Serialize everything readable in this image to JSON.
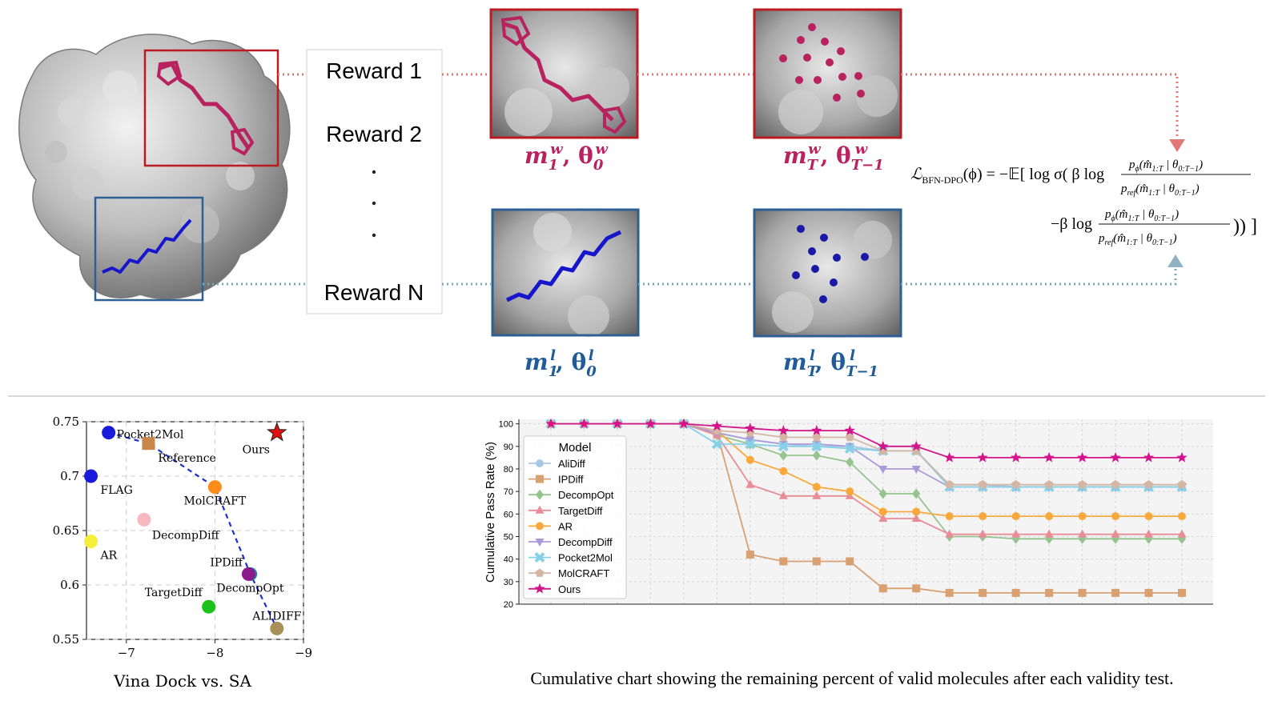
{
  "pipeline": {
    "rewards": [
      "Reward 1",
      "Reward 2",
      "Reward N"
    ],
    "win_labels": {
      "first": {
        "m": "m",
        "sub": "1",
        "sup": "w",
        "theta_sub": "0",
        "theta_sup": "w"
      },
      "last": {
        "m": "m",
        "sub": "T",
        "sup": "w",
        "theta_sub": "T−1",
        "theta_sup": "w"
      }
    },
    "lose_labels": {
      "first": {
        "m": "m",
        "sub": "1",
        "sup": "l",
        "theta_sub": "0",
        "theta_sup": "l"
      },
      "last": {
        "m": "m",
        "sub": "T",
        "sup": "l",
        "theta_sub": "T−1",
        "theta_sup": "l"
      }
    },
    "colors": {
      "win": "#b8235f",
      "win_box": "#b81c22",
      "lose": "#1f5c99",
      "lose_box": "#2e5f93",
      "win_path": "#e07878",
      "lose_path": "#7aaab5"
    }
  },
  "equation": {
    "lhs": "ℒ",
    "lhs_sub": "BFN-DPO",
    "line1": "(ϕ) = −𝔼[ log σ( β log",
    "line2": "−β log"
  },
  "scatter": {
    "chart_data": {
      "type": "scatter",
      "xlabel": "Vina Dock vs. SA",
      "ylabel": "",
      "xlim": [
        -6.55,
        -9.0
      ],
      "ylim": [
        0.55,
        0.75
      ],
      "xticks": [
        "−7",
        "−8",
        "−9"
      ],
      "yticks": [
        "0.55",
        "0.6",
        "0.65",
        "0.7",
        "0.75"
      ],
      "grid": true,
      "points": [
        {
          "name": "Pocket2Mol",
          "x": -6.8,
          "y": 0.74,
          "color": "#1a1adb",
          "marker": "circle"
        },
        {
          "name": "Reference",
          "x": -7.25,
          "y": 0.73,
          "color": "#c8864a",
          "marker": "square"
        },
        {
          "name": "Ours",
          "x": -8.7,
          "y": 0.74,
          "color": "#e01010",
          "marker": "star"
        },
        {
          "name": "FLAG",
          "x": -6.6,
          "y": 0.7,
          "color": "#1a1adb",
          "marker": "circle"
        },
        {
          "name": "MolCRAFT",
          "x": -8.0,
          "y": 0.69,
          "color": "#ff8c1a",
          "marker": "circle"
        },
        {
          "name": "DecompDiff",
          "x": -7.2,
          "y": 0.66,
          "color": "#f7b8c0",
          "marker": "circle"
        },
        {
          "name": "AR",
          "x": -6.6,
          "y": 0.64,
          "color": "#f5ee3a",
          "marker": "circle"
        },
        {
          "name": "IPDiff",
          "x": -8.4,
          "y": 0.61,
          "color": "#1e7fa0",
          "marker": "circle"
        },
        {
          "name": "DecompOpt",
          "x": -8.38,
          "y": 0.61,
          "color": "#8a1a8a",
          "marker": "circle"
        },
        {
          "name": "TargetDiff",
          "x": -7.93,
          "y": 0.58,
          "color": "#1ac21a",
          "marker": "circle"
        },
        {
          "name": "ALIDIFF",
          "x": -8.7,
          "y": 0.56,
          "color": "#a89058",
          "marker": "circle"
        }
      ],
      "frontier": [
        [
          -6.8,
          0.74
        ],
        [
          -7.25,
          0.73
        ],
        [
          -8.0,
          0.69
        ],
        [
          -8.4,
          0.61
        ],
        [
          -8.7,
          0.56
        ]
      ]
    }
  },
  "cumulative": {
    "caption": "Cumulative chart showing the remaining percent of valid molecules after each validity test.",
    "chart_data": {
      "type": "line",
      "ylabel": "Cumulative Pass Rate (%)",
      "xlabel": "",
      "ylim": [
        20,
        102
      ],
      "yticks": [
        20,
        30,
        40,
        50,
        60,
        70,
        80,
        90,
        100
      ],
      "grid": true,
      "legend_title": "Model",
      "legend_position": "top-left",
      "x": [
        0,
        1,
        2,
        3,
        4,
        5,
        6,
        7,
        8,
        9,
        10,
        11,
        12,
        13,
        14,
        15,
        16,
        17,
        18,
        19
      ],
      "series": [
        {
          "name": "AliDiff",
          "color": "#a9c8e6",
          "marker": "circle",
          "values": [
            100,
            100,
            100,
            100,
            100,
            96,
            93,
            91,
            90,
            90,
            88,
            88,
            73,
            73,
            72,
            72,
            72,
            72,
            72,
            72
          ]
        },
        {
          "name": "IPDiff",
          "color": "#d9a071",
          "marker": "square",
          "values": [
            100,
            100,
            100,
            100,
            100,
            96,
            42,
            39,
            39,
            39,
            27,
            27,
            25,
            25,
            25,
            25,
            25,
            25,
            25,
            25
          ]
        },
        {
          "name": "DecompOpt",
          "color": "#95c48f",
          "marker": "diamond",
          "values": [
            100,
            100,
            100,
            100,
            100,
            95,
            91,
            86,
            86,
            83,
            69,
            69,
            50,
            50,
            49,
            49,
            49,
            49,
            49,
            49
          ]
        },
        {
          "name": "TargetDiff",
          "color": "#e88c95",
          "marker": "triangle-up",
          "values": [
            100,
            100,
            100,
            100,
            100,
            95,
            73,
            68,
            68,
            68,
            58,
            58,
            51,
            51,
            51,
            51,
            51,
            51,
            51,
            51
          ]
        },
        {
          "name": "AR",
          "color": "#f9a93b",
          "marker": "circle",
          "values": [
            100,
            100,
            100,
            100,
            100,
            97,
            84,
            79,
            72,
            70,
            61,
            61,
            59,
            59,
            59,
            59,
            59,
            59,
            59,
            59
          ]
        },
        {
          "name": "DecompDiff",
          "color": "#a99bd8",
          "marker": "triangle-down",
          "values": [
            100,
            100,
            100,
            100,
            100,
            96,
            93,
            91,
            91,
            90,
            80,
            80,
            72,
            72,
            72,
            72,
            72,
            72,
            72,
            72
          ]
        },
        {
          "name": "Pocket2Mol",
          "color": "#86d1e8",
          "marker": "x",
          "values": [
            100,
            100,
            100,
            100,
            100,
            91,
            91,
            90,
            90,
            89,
            88,
            88,
            72,
            72,
            72,
            72,
            72,
            72,
            72,
            72
          ]
        },
        {
          "name": "MolCRAFT",
          "color": "#d4b6a3",
          "marker": "pentagon",
          "values": [
            100,
            100,
            100,
            100,
            100,
            97,
            96,
            94,
            94,
            94,
            88,
            88,
            73,
            73,
            73,
            73,
            73,
            73,
            73,
            73
          ]
        },
        {
          "name": "Ours",
          "color": "#d4148a",
          "marker": "star",
          "values": [
            100,
            100,
            100,
            100,
            100,
            99,
            98,
            97,
            97,
            97,
            90,
            90,
            85,
            85,
            85,
            85,
            85,
            85,
            85,
            85
          ]
        }
      ]
    }
  }
}
